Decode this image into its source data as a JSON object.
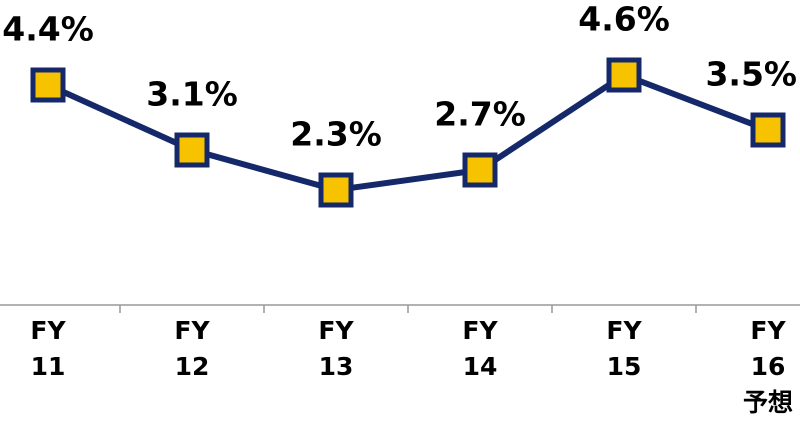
{
  "chart_data": {
    "type": "line",
    "categories": [
      "FY\n11",
      "FY\n12",
      "FY\n13",
      "FY\n14",
      "FY\n15",
      "FY\n16\n予想"
    ],
    "series": [
      {
        "color": "#14286a",
        "marker_color": "#f7c300",
        "values": [
          4.4,
          3.1,
          2.3,
          2.7,
          4.6,
          3.5
        ],
        "value_labels": [
          "4.4%",
          "3.1%",
          "2.3%",
          "2.7%",
          "4.6%",
          "3.5%"
        ]
      }
    ],
    "ylim": [
      0,
      6.1
    ]
  }
}
